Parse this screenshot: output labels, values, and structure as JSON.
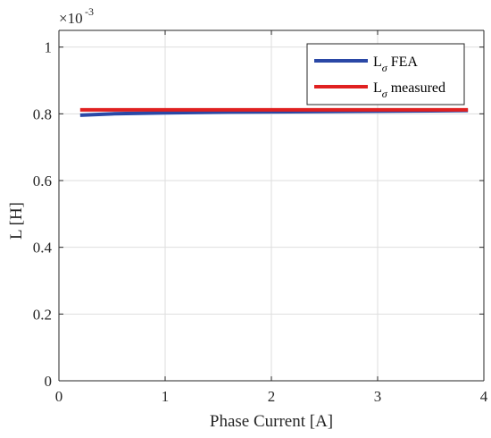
{
  "chart_data": {
    "type": "line",
    "xlabel": "Phase Current [A]",
    "ylabel": "L [H]",
    "xlim": [
      0,
      4
    ],
    "ylim": [
      0,
      0.00105
    ],
    "x_ticks": [
      0,
      1,
      2,
      3,
      4
    ],
    "x_tick_labels": [
      "0",
      "1",
      "2",
      "3",
      "4"
    ],
    "y_ticks": [
      0,
      0.0002,
      0.0004,
      0.0006,
      0.0008,
      0.001
    ],
    "y_tick_labels": [
      "0",
      "0.2",
      "0.4",
      "0.6",
      "0.8",
      "1"
    ],
    "y_exponent_base": "×10",
    "y_exponent_power": "-3",
    "grid": true,
    "legend_position": "top-right",
    "series": [
      {
        "name_main": "L",
        "name_sub": "σ",
        "name_rest": "FEA",
        "color": "#2a48a6",
        "x": [
          0.2,
          0.5,
          1.0,
          1.5,
          2.0,
          2.5,
          3.0,
          3.5,
          3.85
        ],
        "y": [
          0.000796,
          0.0008,
          0.000803,
          0.000805,
          0.000806,
          0.000807,
          0.000808,
          0.000809,
          0.00081
        ]
      },
      {
        "name_main": "L",
        "name_sub": "σ",
        "name_rest": "measured",
        "color": "#e02020",
        "x": [
          0.2,
          3.85
        ],
        "y": [
          0.000812,
          0.000812
        ]
      }
    ]
  }
}
